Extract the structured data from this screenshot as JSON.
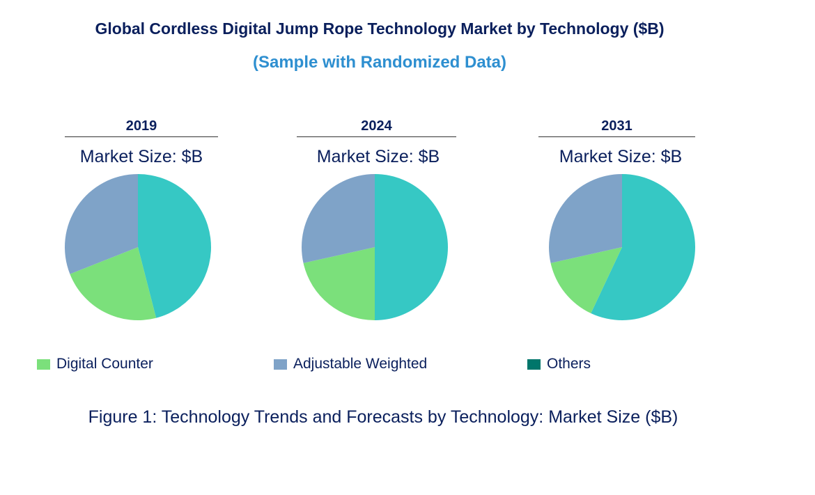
{
  "title": "Global Cordless Digital Jump Rope Technology Market by Technology ($B)",
  "subtitle": "(Sample with Randomized Data)",
  "caption": "Figure 1: Technology Trends and Forecasts by Technology: Market Size ($B)",
  "colors": {
    "teal_slice": "#36c8c4",
    "digital_counter": "#7be07b",
    "adjustable_weighted": "#7fa3c8",
    "others": "#00766b"
  },
  "chart_data": {
    "type": "pie",
    "legend_placement": "bottom",
    "legend": [
      {
        "name": "Digital Counter",
        "color": "#7be07b"
      },
      {
        "name": "Adjustable Weighted",
        "color": "#7fa3c8"
      },
      {
        "name": "Others",
        "color": "#00766b"
      }
    ],
    "pies": [
      {
        "year": "2019",
        "label": "Market Size: $B",
        "slices": [
          {
            "color": "#36c8c4",
            "value": 46
          },
          {
            "name": "Digital Counter",
            "color": "#7be07b",
            "value": 23
          },
          {
            "name": "Adjustable Weighted",
            "color": "#7fa3c8",
            "value": 31
          }
        ]
      },
      {
        "year": "2024",
        "label": "Market Size: $B",
        "slices": [
          {
            "color": "#36c8c4",
            "value": 50
          },
          {
            "name": "Digital Counter",
            "color": "#7be07b",
            "value": 21.5
          },
          {
            "name": "Adjustable Weighted",
            "color": "#7fa3c8",
            "value": 28.5
          }
        ]
      },
      {
        "year": "2031",
        "label": "Market Size: $B",
        "slices": [
          {
            "color": "#36c8c4",
            "value": 57
          },
          {
            "name": "Digital Counter",
            "color": "#7be07b",
            "value": 14.5
          },
          {
            "name": "Adjustable Weighted",
            "color": "#7fa3c8",
            "value": 28.5
          }
        ]
      }
    ]
  }
}
